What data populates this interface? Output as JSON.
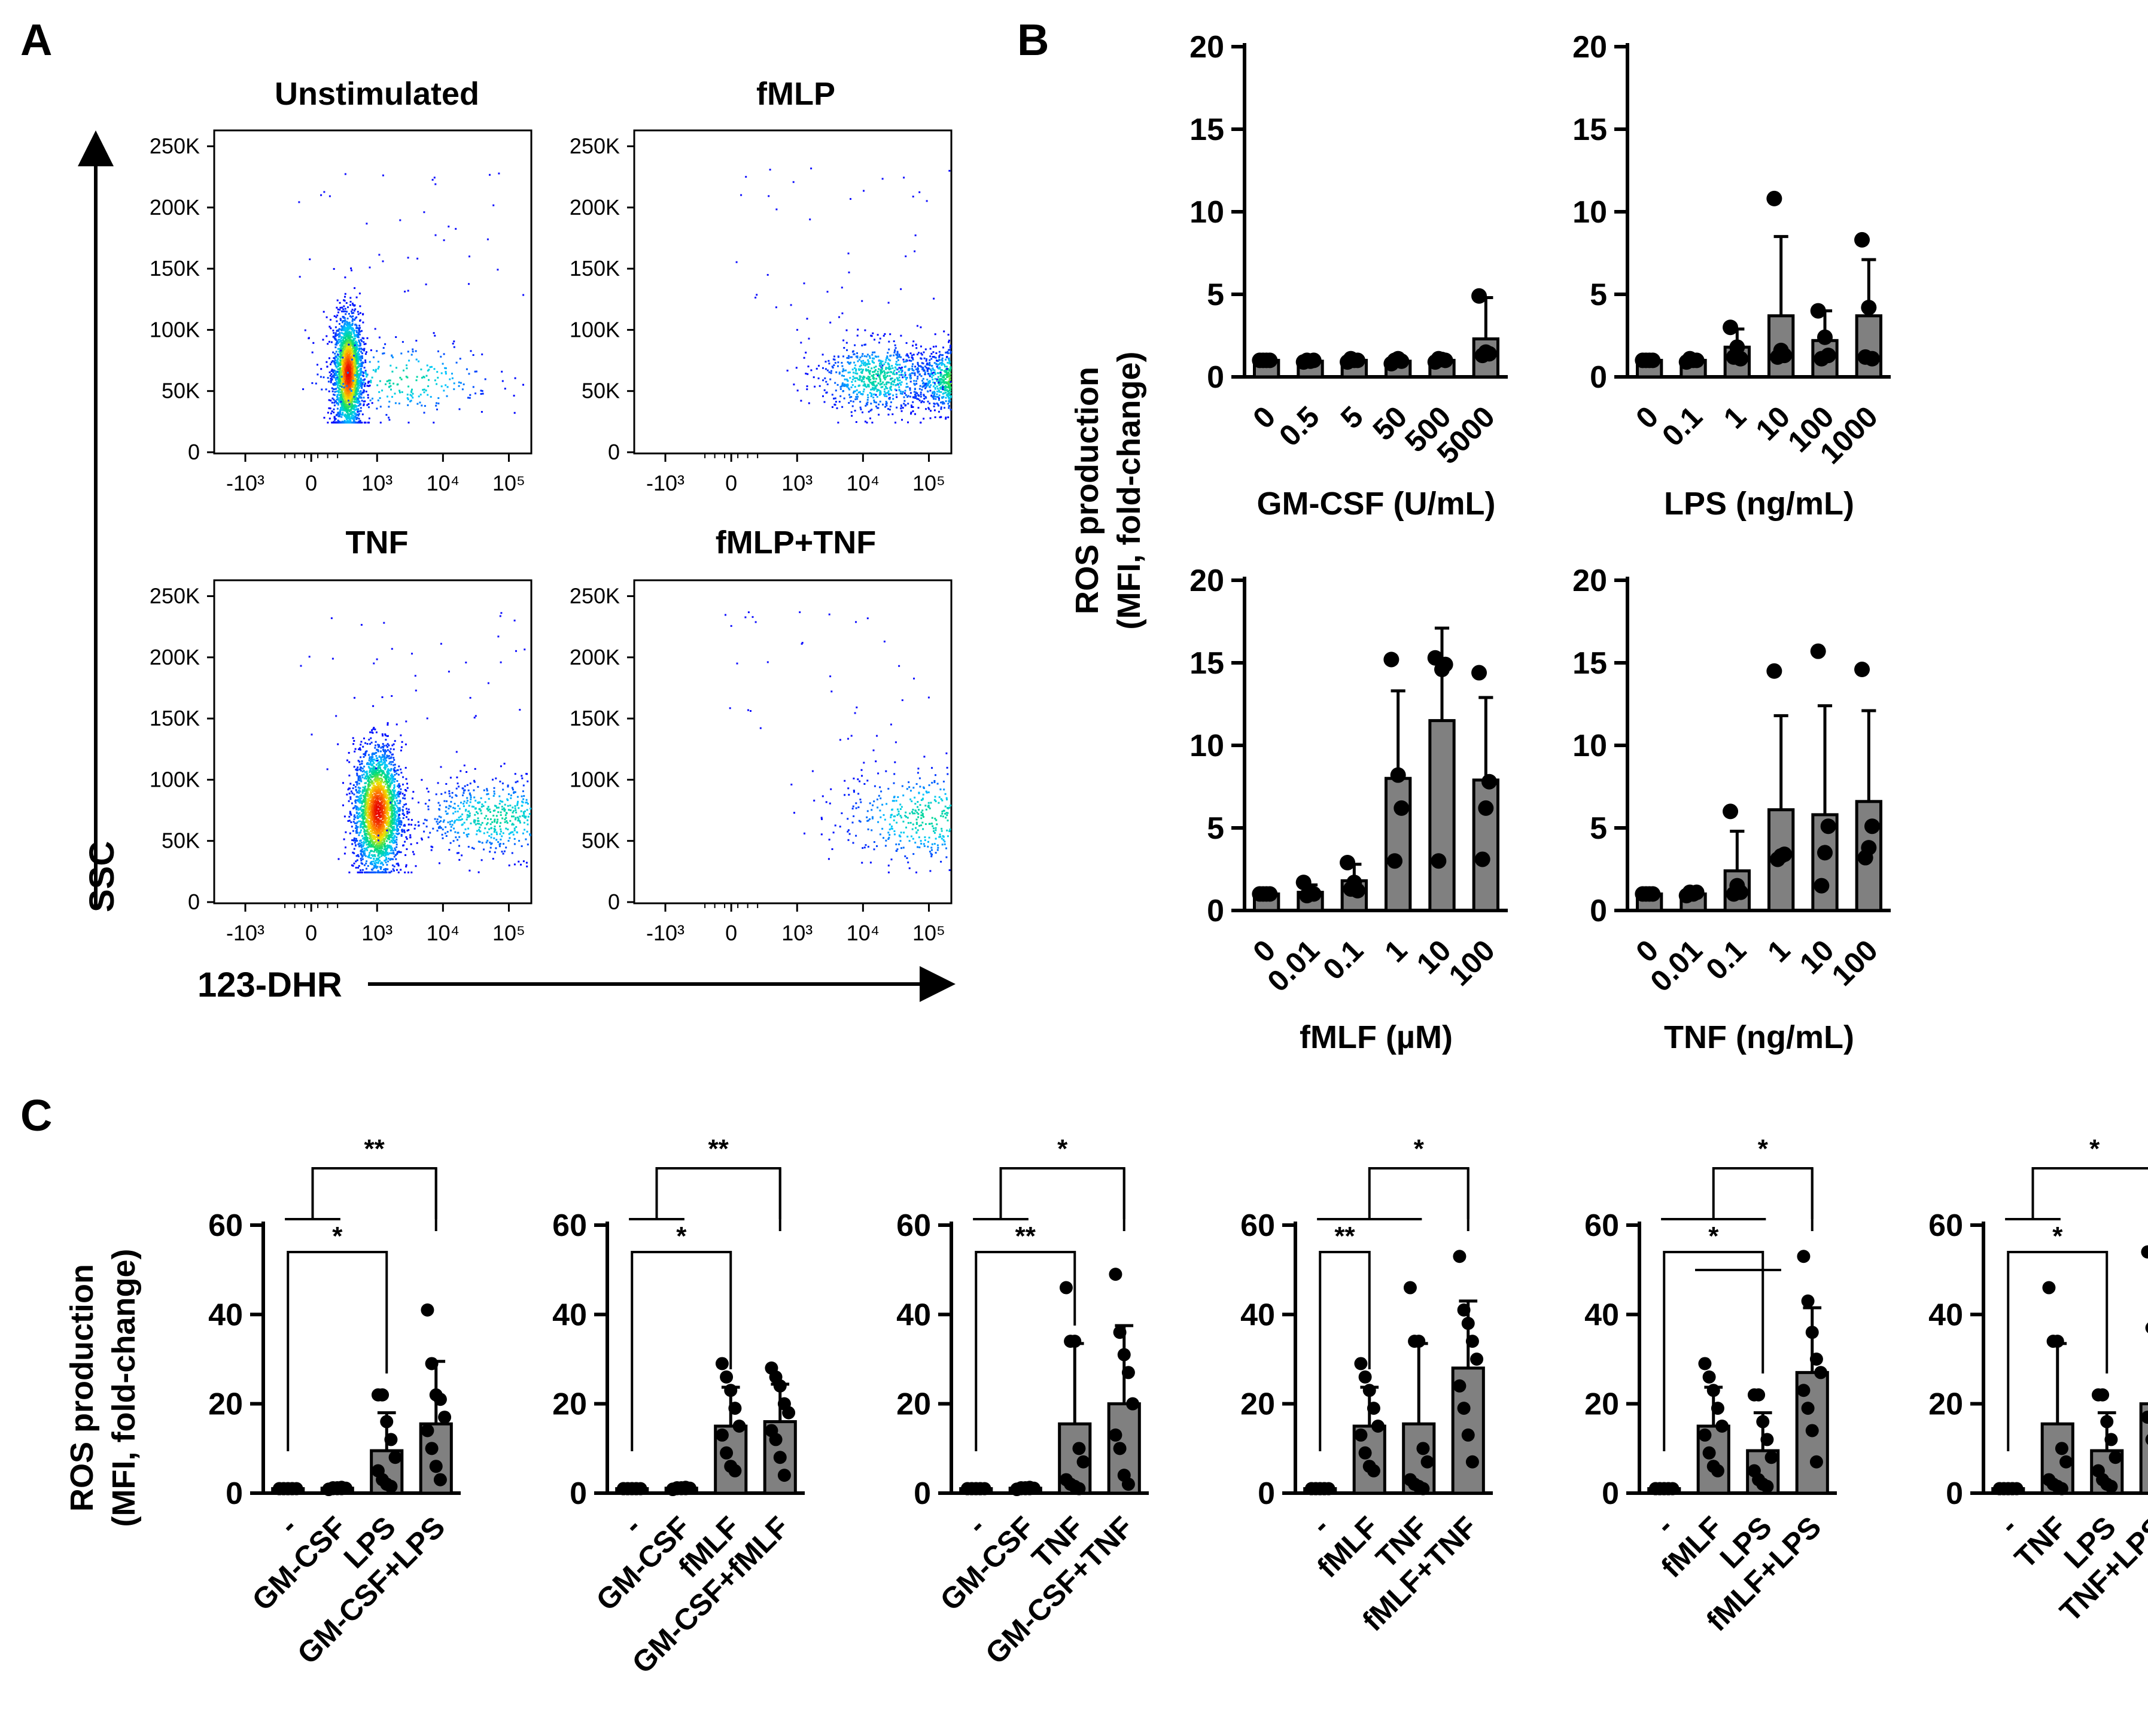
{
  "panel_letters": [
    "A",
    "B",
    "C"
  ],
  "colors": {
    "bar": "#808080",
    "dot": "#000000",
    "axis": "#000000"
  },
  "flow": {
    "y_axis_title": "SSC",
    "x_axis_title": "123-DHR",
    "y_ticks": [
      "0",
      "50K",
      "100K",
      "150K",
      "200K",
      "250K"
    ],
    "x_ticks": [
      "-10³",
      "0",
      "10³",
      "10⁴",
      "10⁵"
    ],
    "plots": [
      {
        "title": "Unstimulated",
        "populations": [
          {
            "x": 0.55,
            "y": 65000,
            "sx": 0.11,
            "sy": 24000,
            "n": 2300
          },
          {
            "x": 1.4,
            "y": 60000,
            "sx": 0.7,
            "sy": 16000,
            "n": 250
          }
        ]
      },
      {
        "title": "fMLP",
        "populations": [
          {
            "x": 3.9,
            "y": 60000,
            "sx": 0.55,
            "sy": 13000,
            "n": 2800
          },
          {
            "x": 2.2,
            "y": 62000,
            "sx": 0.45,
            "sy": 15000,
            "n": 700
          }
        ]
      },
      {
        "title": "TNF",
        "populations": [
          {
            "x": 1.0,
            "y": 75000,
            "sx": 0.18,
            "sy": 26000,
            "n": 2400
          },
          {
            "x": 2.8,
            "y": 70000,
            "sx": 0.65,
            "sy": 16000,
            "n": 600
          }
        ]
      },
      {
        "title": "fMLP+TNF",
        "populations": [
          {
            "x": 4.35,
            "y": 72000,
            "sx": 0.3,
            "sy": 26000,
            "n": 2400
          },
          {
            "x": 3.0,
            "y": 70000,
            "sx": 0.7,
            "sy": 20000,
            "n": 500
          }
        ]
      }
    ]
  },
  "chart_data": [
    {
      "panel": "B",
      "type": "bar",
      "ylabel": "ROS production\n(MFI, fold-change)",
      "xlabel": "GM-CSF (U/mL)",
      "ylim": [
        0,
        20
      ],
      "yticks": [
        0,
        5,
        10,
        15,
        20
      ],
      "categories": [
        "0",
        "0.5",
        "5",
        "50",
        "500",
        "5000"
      ],
      "values": [
        1,
        0.95,
        1,
        0.95,
        1,
        2.3
      ],
      "errors": [
        0.05,
        0.1,
        0.15,
        0.15,
        0.2,
        2.5
      ],
      "points": [
        [
          1,
          1,
          1,
          1
        ],
        [
          0.9,
          1,
          0.95,
          1
        ],
        [
          0.9,
          1.1,
          1,
          1
        ],
        [
          0.8,
          1,
          1.1,
          0.95
        ],
        [
          0.9,
          1.1,
          1.05,
          1
        ],
        [
          4.9,
          1.3,
          1.5,
          1.4
        ]
      ]
    },
    {
      "panel": "B",
      "type": "bar",
      "ylabel": "",
      "xlabel": "LPS (ng/mL)",
      "ylim": [
        0,
        20
      ],
      "yticks": [
        0,
        5,
        10,
        15,
        20
      ],
      "categories": [
        "0",
        "0.1",
        "1",
        "10",
        "100",
        "1000"
      ],
      "values": [
        1,
        1,
        1.8,
        3.7,
        2.2,
        3.7
      ],
      "errors": [
        0.05,
        0.15,
        1.1,
        4.8,
        1.8,
        3.4
      ],
      "points": [
        [
          1,
          1,
          1,
          1
        ],
        [
          0.9,
          1.1,
          1,
          1
        ],
        [
          3,
          1.2,
          1.8,
          1.1
        ],
        [
          10.8,
          1.2,
          1.6,
          1.3
        ],
        [
          4,
          1.1,
          2.4,
          1.3
        ],
        [
          8.3,
          1.2,
          4.2,
          1.1
        ]
      ]
    },
    {
      "panel": "B",
      "type": "bar",
      "ylabel": "",
      "xlabel": "fMLF (µM)",
      "ylim": [
        0,
        20
      ],
      "yticks": [
        0,
        5,
        10,
        15,
        20
      ],
      "categories": [
        "0",
        "0.01",
        "0.1",
        "1",
        "10",
        "100"
      ],
      "values": [
        1,
        1.1,
        1.8,
        8,
        11.5,
        7.9
      ],
      "errors": [
        0.05,
        0.45,
        1.0,
        5.3,
        5.6,
        5.0
      ],
      "points": [
        [
          1,
          1,
          1,
          1
        ],
        [
          1.7,
          0.9,
          1.1,
          1
        ],
        [
          2.9,
          1.3,
          1.7,
          1.2
        ],
        [
          15.2,
          3,
          8.2,
          6.2
        ],
        [
          15.3,
          3,
          14.6,
          14.9
        ],
        [
          14.4,
          3.1,
          6.2,
          7.8
        ]
      ]
    },
    {
      "panel": "B",
      "type": "bar",
      "ylabel": "",
      "xlabel": "TNF (ng/mL)",
      "ylim": [
        0,
        20
      ],
      "yticks": [
        0,
        5,
        10,
        15,
        20
      ],
      "categories": [
        "0",
        "0.01",
        "0.1",
        "1",
        "10",
        "100"
      ],
      "values": [
        1,
        1,
        2.4,
        6.1,
        5.8,
        6.6
      ],
      "errors": [
        0.05,
        0.15,
        2.4,
        5.7,
        6.6,
        5.5
      ],
      "points": [
        [
          1,
          1,
          1,
          1
        ],
        [
          0.9,
          1.1,
          1,
          1.1
        ],
        [
          6,
          1,
          1.5,
          1.1
        ],
        [
          14.5,
          3.1,
          3.3,
          3.4
        ],
        [
          15.7,
          1.5,
          3.5,
          5.1
        ],
        [
          14.6,
          3.2,
          3.8,
          5.1
        ]
      ]
    },
    {
      "panel": "C",
      "type": "bar",
      "ylabel": "ROS production\n(MFI, fold-change)",
      "xlabel": "",
      "ylim": [
        0,
        60
      ],
      "yticks": [
        0,
        20,
        40,
        60
      ],
      "categories": [
        "-",
        "GM-CSF",
        "LPS",
        "GM-CSF+LPS"
      ],
      "values": [
        1,
        1.1,
        9.5,
        15.5
      ],
      "errors": [
        0.05,
        0.4,
        8.5,
        14
      ],
      "points": [
        [
          1,
          1,
          1,
          1,
          1,
          1,
          1,
          1,
          1
        ],
        [
          0.8,
          1.2,
          1,
          1.3,
          1.1,
          0.9,
          1,
          1.2,
          1
        ],
        [
          22,
          22,
          16,
          12,
          8,
          5,
          3,
          2,
          1.5
        ],
        [
          41,
          29,
          22,
          21,
          17,
          14,
          10,
          6,
          3
        ]
      ],
      "brackets": [
        {
          "groups": [
            0,
            1
          ],
          "bar": [
            2
          ],
          "sig": "*"
        },
        {
          "groups": [
            0,
            1
          ],
          "bar": [
            3
          ],
          "sig": "**",
          "top": true
        }
      ]
    },
    {
      "panel": "C",
      "type": "bar",
      "ylabel": "",
      "xlabel": "",
      "ylim": [
        0,
        60
      ],
      "yticks": [
        0,
        20,
        40,
        60
      ],
      "categories": [
        "-",
        "GM-CSF",
        "fMLF",
        "GM-CSF+fMLF"
      ],
      "values": [
        1,
        1.1,
        15,
        16
      ],
      "errors": [
        0.05,
        0.4,
        8.7,
        8.4
      ],
      "points": [
        [
          1,
          1,
          1,
          1,
          1,
          1,
          1,
          1,
          1
        ],
        [
          0.8,
          1.2,
          1,
          1.3,
          1.1,
          0.9,
          1,
          1.2,
          1
        ],
        [
          29,
          26,
          23,
          19,
          15,
          13,
          9,
          6,
          5
        ],
        [
          28,
          26,
          24,
          20,
          18,
          14,
          12,
          8,
          4
        ]
      ],
      "brackets": [
        {
          "groups": [
            0,
            1
          ],
          "bar": [
            2
          ],
          "sig": "*"
        },
        {
          "groups": [
            0,
            1
          ],
          "bar": [
            3
          ],
          "sig": "**",
          "top": true
        }
      ]
    },
    {
      "panel": "C",
      "type": "bar",
      "ylabel": "",
      "xlabel": "",
      "ylim": [
        0,
        60
      ],
      "yticks": [
        0,
        20,
        40,
        60
      ],
      "categories": [
        "-",
        "GM-CSF",
        "TNF",
        "GM-CSF+TNF"
      ],
      "values": [
        1,
        1.1,
        15.5,
        20
      ],
      "errors": [
        0.05,
        0.4,
        18,
        17.5
      ],
      "points": [
        [
          1,
          1,
          1,
          1,
          1,
          1,
          1,
          1,
          1
        ],
        [
          0.8,
          1.2,
          1,
          1.3,
          1.1,
          0.9,
          1,
          1.2,
          1
        ],
        [
          46,
          34,
          34,
          10,
          7,
          3,
          2,
          1.5,
          1
        ],
        [
          49,
          36,
          31,
          27,
          20,
          13,
          10,
          4,
          2
        ]
      ],
      "brackets": [
        {
          "groups": [
            0,
            1
          ],
          "bar": [
            2
          ],
          "sig": "**"
        },
        {
          "groups": [
            0,
            1
          ],
          "bar": [
            3
          ],
          "sig": "*",
          "top": true
        }
      ]
    },
    {
      "panel": "C",
      "type": "bar",
      "ylabel": "",
      "xlabel": "",
      "ylim": [
        0,
        60
      ],
      "yticks": [
        0,
        20,
        40,
        60
      ],
      "categories": [
        "-",
        "fMLF",
        "TNF",
        "fMLF+TNF"
      ],
      "values": [
        1,
        15,
        15.5,
        28
      ],
      "errors": [
        0.05,
        8.7,
        18,
        15
      ],
      "points": [
        [
          1,
          1,
          1,
          1,
          1,
          1,
          1,
          1,
          1
        ],
        [
          29,
          26,
          23,
          19,
          15,
          13,
          9,
          6,
          5
        ],
        [
          46,
          34,
          34,
          10,
          7,
          3,
          2,
          1.5,
          1
        ],
        [
          53,
          41,
          38,
          34,
          30,
          24,
          19,
          13,
          7
        ]
      ],
      "brackets": [
        {
          "groups": [
            0
          ],
          "bar": [
            1
          ],
          "sig": "**"
        },
        {
          "groups": [
            0,
            1,
            2
          ],
          "bar": [
            3
          ],
          "sig": "*",
          "top": true
        }
      ]
    },
    {
      "panel": "C",
      "type": "bar",
      "ylabel": "",
      "xlabel": "",
      "ylim": [
        0,
        60
      ],
      "yticks": [
        0,
        20,
        40,
        60
      ],
      "categories": [
        "-",
        "fMLF",
        "LPS",
        "fMLF+LPS"
      ],
      "values": [
        1,
        15,
        9.5,
        27
      ],
      "errors": [
        0.05,
        8.7,
        8.5,
        14.5
      ],
      "points": [
        [
          1,
          1,
          1,
          1,
          1,
          1,
          1,
          1,
          1
        ],
        [
          29,
          26,
          23,
          19,
          15,
          13,
          9,
          6,
          5
        ],
        [
          22,
          22,
          16,
          12,
          8,
          5,
          3,
          2,
          1.5
        ],
        [
          53,
          43,
          36,
          30,
          27,
          23,
          19,
          14,
          7
        ]
      ],
      "brackets": [
        {
          "groups": [
            0
          ],
          "bar": [
            1,
            2
          ],
          "sig": "*"
        },
        {
          "groups": [
            0,
            1,
            2
          ],
          "bar": [
            3
          ],
          "sig": "*",
          "top": true
        }
      ]
    },
    {
      "panel": "C",
      "type": "bar",
      "ylabel": "",
      "xlabel": "",
      "ylim": [
        0,
        60
      ],
      "yticks": [
        0,
        20,
        40,
        60
      ],
      "categories": [
        "-",
        "TNF",
        "LPS",
        "TNF+LPS"
      ],
      "values": [
        1,
        15.5,
        9.5,
        20
      ],
      "errors": [
        0.05,
        18,
        8.5,
        17.5
      ],
      "points": [
        [
          1,
          1,
          1,
          1,
          1,
          1,
          1,
          1,
          1
        ],
        [
          46,
          34,
          34,
          10,
          7,
          3,
          2,
          1.5,
          1
        ],
        [
          22,
          22,
          16,
          12,
          8,
          5,
          3,
          2,
          1.5
        ],
        [
          54,
          37,
          28,
          25,
          20,
          17,
          12,
          8,
          4
        ]
      ],
      "brackets": [
        {
          "groups": [
            0,
            1
          ],
          "bar": [
            2
          ],
          "sig": "*"
        },
        {
          "groups": [
            0,
            1
          ],
          "bar": [
            3
          ],
          "sig": "*",
          "top": true
        }
      ]
    }
  ]
}
